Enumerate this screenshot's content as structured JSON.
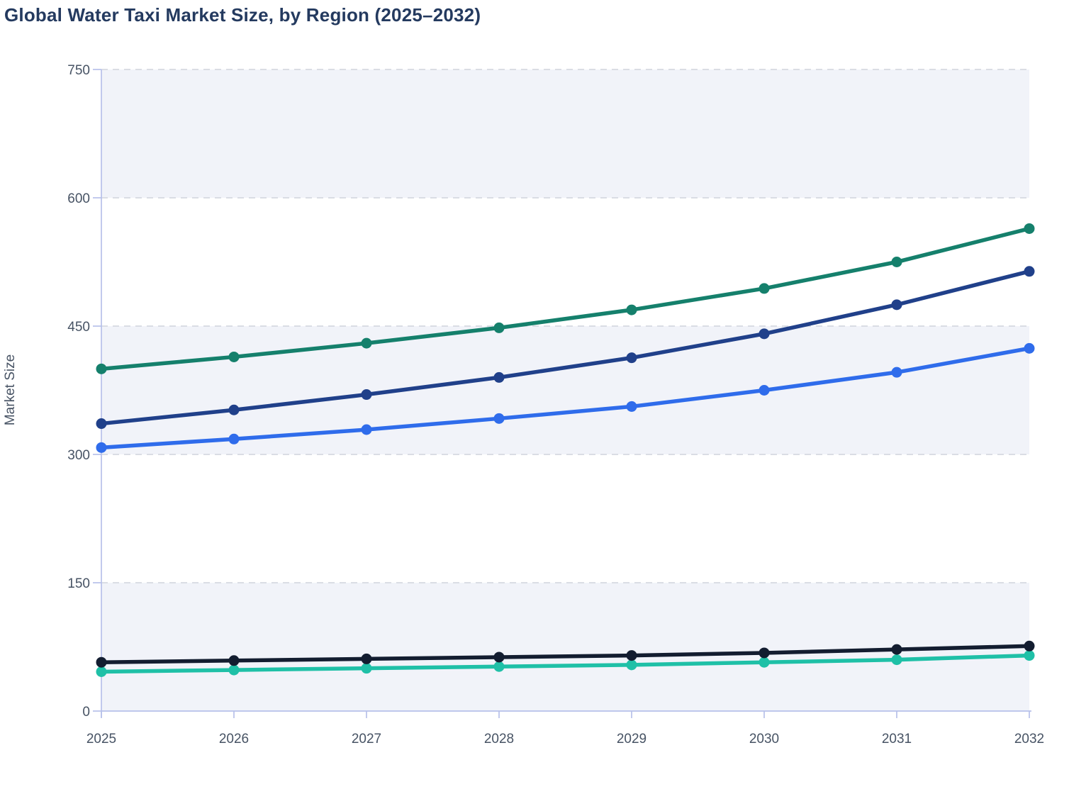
{
  "header": {
    "title": "Global Water Taxi Market Size, by Region (2025–2032)"
  },
  "chart_data": {
    "type": "line",
    "title": "Global Water Taxi Market Size, by Region (2025–2032)",
    "xlabel": "",
    "ylabel": "Market Size",
    "x": [
      2025,
      2026,
      2027,
      2028,
      2029,
      2030,
      2031,
      2032
    ],
    "ylim": [
      0,
      750
    ],
    "yticks": [
      0,
      150,
      300,
      450,
      600,
      750
    ],
    "grid": "horizontal-dashed",
    "legend_position": "none",
    "shaded_bands": [
      [
        600,
        750
      ],
      [
        300,
        450
      ],
      [
        0,
        150
      ]
    ],
    "series": [
      {
        "name": "blue-series",
        "color": "#2f6ceb",
        "values": [
          308,
          318,
          329,
          342,
          356,
          375,
          396,
          424
        ]
      },
      {
        "name": "navy-series",
        "color": "#20408a",
        "values": [
          336,
          352,
          370,
          390,
          413,
          441,
          475,
          514
        ]
      },
      {
        "name": "green-series",
        "color": "#15806c",
        "values": [
          400,
          414,
          430,
          448,
          469,
          494,
          525,
          564
        ]
      },
      {
        "name": "teal-series",
        "color": "#1fc0a7",
        "values": [
          46,
          48,
          50,
          52,
          54,
          57,
          60,
          65
        ]
      },
      {
        "name": "black-series",
        "color": "#131d30",
        "values": [
          57,
          59,
          61,
          63,
          65,
          68,
          72,
          76
        ]
      }
    ],
    "style": {
      "band_color": "#f1f3f9",
      "grid_color": "#dadde4",
      "axis_color": "#b7c1ea",
      "tick_label_color": "#475364",
      "title_color": "#243a5f"
    }
  }
}
